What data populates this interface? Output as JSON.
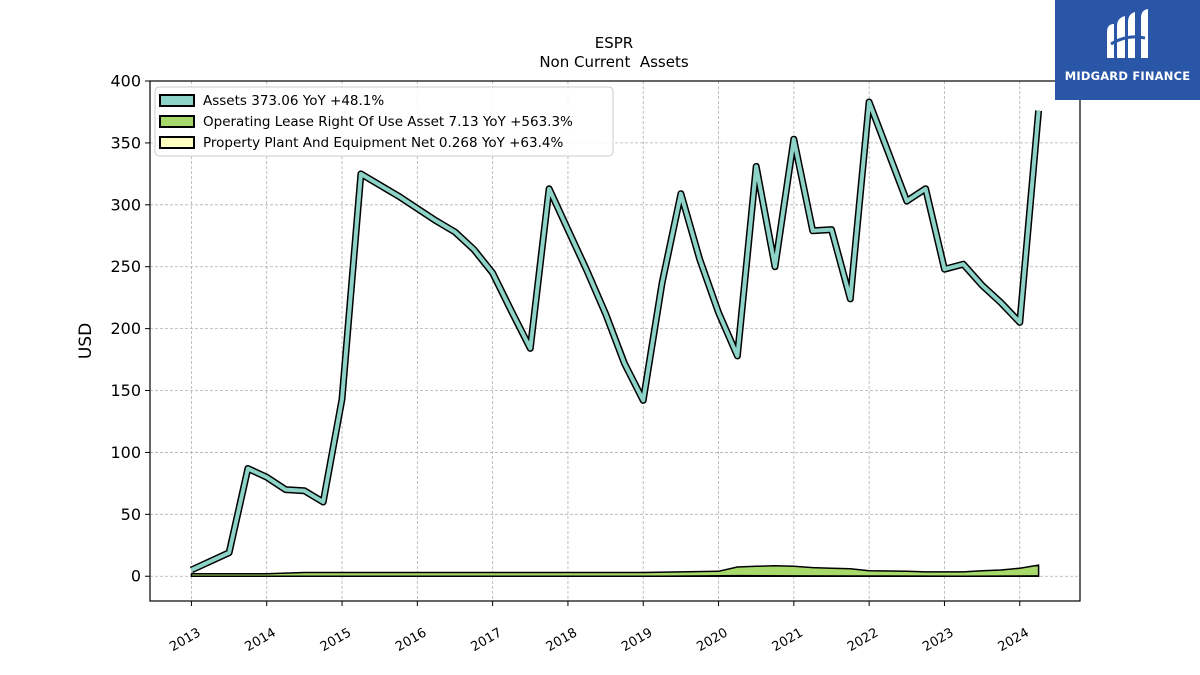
{
  "brand": {
    "name": "MIDGARD FINANCE",
    "bg_color": "#2a56a8",
    "icon": "midgard-logo-icon"
  },
  "chart_data": {
    "type": "area",
    "title": "ESPR",
    "subtitle": "Non Current  Assets",
    "ylabel": "USD",
    "xlabel": "",
    "ylim": [
      -20,
      400
    ],
    "yticks": [
      0,
      50,
      100,
      150,
      200,
      250,
      300,
      350,
      400
    ],
    "xlim": [
      2012.45,
      2024.8
    ],
    "xticks": [
      "2013",
      "2014",
      "2015",
      "2016",
      "2017",
      "2018",
      "2019",
      "2020",
      "2021",
      "2022",
      "2023",
      "2024"
    ],
    "grid": true,
    "legend_position": "top-left",
    "series": [
      {
        "name": "Assets",
        "legend": "Assets  373.06 YoY +48.1%",
        "color": "#8dd3c7",
        "points": [
          [
            2013.0,
            5
          ],
          [
            2013.5,
            19
          ],
          [
            2013.75,
            87
          ],
          [
            2014.0,
            80
          ],
          [
            2014.25,
            70
          ],
          [
            2014.5,
            69
          ],
          [
            2014.75,
            60
          ],
          [
            2015.0,
            143
          ],
          [
            2015.25,
            325
          ],
          [
            2015.5,
            316
          ],
          [
            2015.75,
            307
          ],
          [
            2016.0,
            297
          ],
          [
            2016.25,
            287
          ],
          [
            2016.5,
            278
          ],
          [
            2016.75,
            264
          ],
          [
            2017.0,
            245
          ],
          [
            2017.25,
            214
          ],
          [
            2017.5,
            184
          ],
          [
            2017.75,
            313
          ],
          [
            2018.0,
            280
          ],
          [
            2018.25,
            247
          ],
          [
            2018.5,
            212
          ],
          [
            2018.75,
            172
          ],
          [
            2019.0,
            142
          ],
          [
            2019.25,
            237
          ],
          [
            2019.5,
            309
          ],
          [
            2019.75,
            256
          ],
          [
            2020.0,
            213
          ],
          [
            2020.25,
            178
          ],
          [
            2020.5,
            331
          ],
          [
            2020.75,
            250
          ],
          [
            2021.0,
            353
          ],
          [
            2021.25,
            279
          ],
          [
            2021.5,
            280
          ],
          [
            2021.75,
            224
          ],
          [
            2022.0,
            383
          ],
          [
            2022.25,
            343
          ],
          [
            2022.5,
            303
          ],
          [
            2022.75,
            313
          ],
          [
            2023.0,
            248
          ],
          [
            2023.25,
            252
          ],
          [
            2023.5,
            235
          ],
          [
            2023.75,
            221
          ],
          [
            2024.0,
            205
          ],
          [
            2024.25,
            376
          ]
        ]
      },
      {
        "name": "Operating Lease Right Of Use Asset",
        "legend": "Operating Lease Right Of Use Asset  7.13 YoY +563.3%",
        "color": "#a6d96a",
        "points": [
          [
            2013.0,
            2
          ],
          [
            2014.0,
            2
          ],
          [
            2014.5,
            3
          ],
          [
            2015.0,
            3
          ],
          [
            2016.0,
            3
          ],
          [
            2017.0,
            3
          ],
          [
            2018.0,
            3
          ],
          [
            2018.5,
            3
          ],
          [
            2019.0,
            3
          ],
          [
            2019.5,
            3.5
          ],
          [
            2020.0,
            4
          ],
          [
            2020.25,
            7.5
          ],
          [
            2020.5,
            8
          ],
          [
            2020.75,
            8.5
          ],
          [
            2021.0,
            8
          ],
          [
            2021.25,
            7
          ],
          [
            2021.5,
            6.5
          ],
          [
            2021.75,
            6
          ],
          [
            2022.0,
            4.5
          ],
          [
            2022.5,
            4
          ],
          [
            2022.75,
            3.5
          ],
          [
            2023.0,
            3.5
          ],
          [
            2023.25,
            3.5
          ],
          [
            2023.5,
            4.5
          ],
          [
            2023.75,
            5
          ],
          [
            2024.0,
            6.5
          ],
          [
            2024.25,
            9
          ]
        ]
      },
      {
        "name": "Property Plant And Equipment Net",
        "legend": "Property Plant And Equipment Net  0.268 YoY +63.4%",
        "color": "#ffffbf",
        "points": [
          [
            2013.0,
            0
          ],
          [
            2015.0,
            0
          ],
          [
            2018.5,
            0
          ],
          [
            2019.0,
            0
          ],
          [
            2019.25,
            0
          ],
          [
            2020.25,
            0.5
          ],
          [
            2021.0,
            0.3
          ],
          [
            2022.0,
            0.2
          ],
          [
            2023.25,
            0
          ],
          [
            2024.25,
            0.3
          ]
        ]
      }
    ]
  }
}
